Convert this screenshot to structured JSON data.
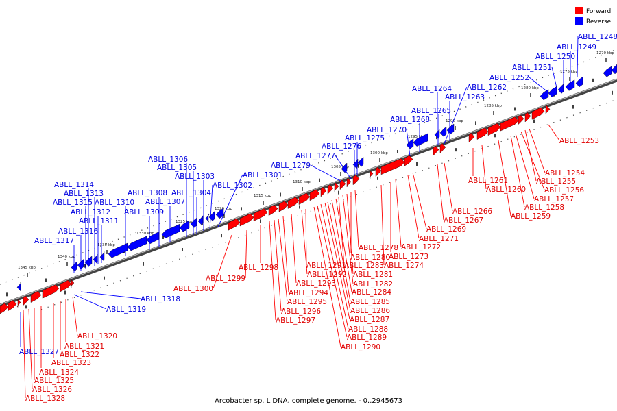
{
  "caption": "Arcobacter sp. L DNA, complete genome. - 0..2945673",
  "legend": {
    "forward": {
      "label": "Forward",
      "color": "#ff0000"
    },
    "reverse": {
      "label": "Reverse",
      "color": "#0000ff"
    }
  },
  "scale_unit": "kbp",
  "ticks": [
    {
      "label": "1270 kbp",
      "pos": 1270
    },
    {
      "label": "1275 kbp",
      "pos": 1275
    },
    {
      "label": "1280 kbp",
      "pos": 1280
    },
    {
      "label": "1285 kbp",
      "pos": 1285
    },
    {
      "label": "1290 kbp",
      "pos": 1290
    },
    {
      "label": "1295 kbp",
      "pos": 1295
    },
    {
      "label": "1300 kbp",
      "pos": 1300
    },
    {
      "label": "1305 kbp",
      "pos": 1305
    },
    {
      "label": "1310 kbp",
      "pos": 1310
    },
    {
      "label": "1315 kbp",
      "pos": 1315
    },
    {
      "label": "1320 kbp",
      "pos": 1320
    },
    {
      "label": "1325 kbp",
      "pos": 1325
    },
    {
      "label": "1330 kbp",
      "pos": 1330
    },
    {
      "label": "1335 kbp",
      "pos": 1335
    },
    {
      "label": "1340 kbp",
      "pos": 1340
    },
    {
      "label": "1345 kbp",
      "pos": 1345
    }
  ],
  "genes_reverse": [
    {
      "name": "ABLL_1248"
    },
    {
      "name": "ABLL_1249"
    },
    {
      "name": "ABLL_1250"
    },
    {
      "name": "ABLL_1251"
    },
    {
      "name": "ABLL_1252"
    },
    {
      "name": "ABLL_1262"
    },
    {
      "name": "ABLL_1263"
    },
    {
      "name": "ABLL_1264"
    },
    {
      "name": "ABLL_1265"
    },
    {
      "name": "ABLL_1268"
    },
    {
      "name": "ABLL_1270"
    },
    {
      "name": "ABLL_1275"
    },
    {
      "name": "ABLL_1276"
    },
    {
      "name": "ABLL_1277"
    },
    {
      "name": "ABLL_1279"
    },
    {
      "name": "ABLL_1301"
    },
    {
      "name": "ABLL_1302"
    },
    {
      "name": "ABLL_1303"
    },
    {
      "name": "ABLL_1304"
    },
    {
      "name": "ABLL_1305"
    },
    {
      "name": "ABLL_1306"
    },
    {
      "name": "ABLL_1307"
    },
    {
      "name": "ABLL_1308"
    },
    {
      "name": "ABLL_1309"
    },
    {
      "name": "ABLL_1310"
    },
    {
      "name": "ABLL_1311"
    },
    {
      "name": "ABLL_1312"
    },
    {
      "name": "ABLL_1313"
    },
    {
      "name": "ABLL_1314"
    },
    {
      "name": "ABLL_1315"
    },
    {
      "name": "ABLL_1316"
    },
    {
      "name": "ABLL_1317"
    },
    {
      "name": "ABLL_1318"
    },
    {
      "name": "ABLL_1319"
    },
    {
      "name": "ABLL_1327"
    }
  ],
  "genes_forward": [
    {
      "name": "ABLL_1253"
    },
    {
      "name": "ABLL_1254"
    },
    {
      "name": "ABLL_1255"
    },
    {
      "name": "ABLL_1256"
    },
    {
      "name": "ABLL_1257"
    },
    {
      "name": "ABLL_1258"
    },
    {
      "name": "ABLL_1259"
    },
    {
      "name": "ABLL_1260"
    },
    {
      "name": "ABLL_1261"
    },
    {
      "name": "ABLL_1266"
    },
    {
      "name": "ABLL_1267"
    },
    {
      "name": "ABLL_1269"
    },
    {
      "name": "ABLL_1271"
    },
    {
      "name": "ABLL_1272"
    },
    {
      "name": "ABLL_1273"
    },
    {
      "name": "ABLL_1274"
    },
    {
      "name": "ABLL_1278"
    },
    {
      "name": "ABLL_1280"
    },
    {
      "name": "ABLL_1281"
    },
    {
      "name": "ABLL_1282"
    },
    {
      "name": "ABLL_1283"
    },
    {
      "name": "ABLL_1284"
    },
    {
      "name": "ABLL_1285"
    },
    {
      "name": "ABLL_1286"
    },
    {
      "name": "ABLL_1287"
    },
    {
      "name": "ABLL_1288"
    },
    {
      "name": "ABLL_1289"
    },
    {
      "name": "ABLL_1290"
    },
    {
      "name": "ABLL_1291"
    },
    {
      "name": "ABLL_1292"
    },
    {
      "name": "ABLL_1293"
    },
    {
      "name": "ABLL_1294"
    },
    {
      "name": "ABLL_1295"
    },
    {
      "name": "ABLL_1296"
    },
    {
      "name": "ABLL_1297"
    },
    {
      "name": "ABLL_1298"
    },
    {
      "name": "ABLL_1299"
    },
    {
      "name": "ABLL_1300"
    },
    {
      "name": "ABLL_1320"
    },
    {
      "name": "ABLL_1321"
    },
    {
      "name": "ABLL_1322"
    },
    {
      "name": "ABLL_1323"
    },
    {
      "name": "ABLL_1324"
    },
    {
      "name": "ABLL_1325"
    },
    {
      "name": "ABLL_1326"
    },
    {
      "name": "ABLL_1328"
    }
  ]
}
